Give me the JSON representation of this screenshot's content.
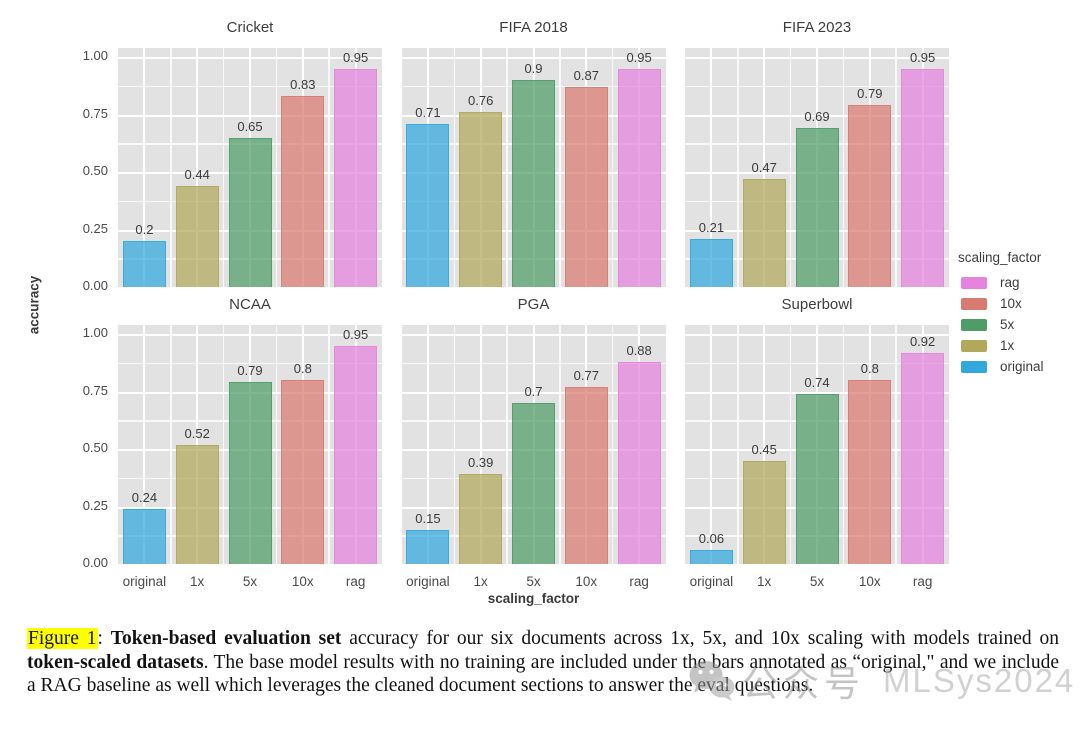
{
  "chart_data": {
    "type": "bar",
    "categories": [
      "original",
      "1x",
      "5x",
      "10x",
      "rag"
    ],
    "xlabel": "scaling_factor",
    "ylabel": "accuracy",
    "ylim": [
      0,
      1.0
    ],
    "ytick_labels": [
      "1.00",
      "0.75",
      "0.50",
      "0.25",
      "0.00"
    ],
    "ytick_values": [
      1.0,
      0.75,
      0.5,
      0.25,
      0.0
    ],
    "grid": true,
    "panel_bg": "#e2e2e2",
    "legend": {
      "title": "scaling_factor",
      "position": "right",
      "entries": [
        {
          "label": "rag",
          "color": "#e583de"
        },
        {
          "label": "10x",
          "color": "#d97a72"
        },
        {
          "label": "5x",
          "color": "#4f9c68"
        },
        {
          "label": "1x",
          "color": "#b1a85c"
        },
        {
          "label": "original",
          "color": "#31a8dc"
        }
      ]
    },
    "series_colors": {
      "original": "#31a8dc",
      "1x": "#b1a85c",
      "5x": "#4f9c68",
      "10x": "#d97a72",
      "rag": "#e583de"
    },
    "panels": [
      {
        "title": "Cricket",
        "values": [
          0.2,
          0.44,
          0.65,
          0.83,
          0.95
        ],
        "labels": [
          "0.2",
          "0.44",
          "0.65",
          "0.83",
          "0.95"
        ]
      },
      {
        "title": "FIFA 2018",
        "values": [
          0.71,
          0.76,
          0.9,
          0.87,
          0.95
        ],
        "labels": [
          "0.71",
          "0.76",
          "0.9",
          "0.87",
          "0.95"
        ]
      },
      {
        "title": "FIFA 2023",
        "values": [
          0.21,
          0.47,
          0.69,
          0.79,
          0.95
        ],
        "labels": [
          "0.21",
          "0.47",
          "0.69",
          "0.79",
          "0.95"
        ]
      },
      {
        "title": "NCAA",
        "values": [
          0.24,
          0.52,
          0.79,
          0.8,
          0.95
        ],
        "labels": [
          "0.24",
          "0.52",
          "0.79",
          "0.8",
          "0.95"
        ]
      },
      {
        "title": "PGA",
        "values": [
          0.15,
          0.39,
          0.7,
          0.77,
          0.88
        ],
        "labels": [
          "0.15",
          "0.39",
          "0.7",
          "0.77",
          "0.88"
        ]
      },
      {
        "title": "Superbowl",
        "values": [
          0.06,
          0.45,
          0.74,
          0.8,
          0.92
        ],
        "labels": [
          "0.06",
          "0.45",
          "0.74",
          "0.8",
          "0.92"
        ]
      }
    ]
  },
  "caption": {
    "label": "Figure 1",
    "sep": ": ",
    "bold1": "Token-based evaluation set",
    "text1": " accuracy for our six documents across 1x, 5x, and 10x scaling with models trained on ",
    "bold2": "token-scaled datasets",
    "text2": ". The base model results with no training are included under the bars annotated as “original,\" and we include a RAG baseline as well which leverages the cleaned document sections to answer the eval questions.",
    "highlight_color": "#ffff00"
  },
  "watermark": {
    "icon": "wechat-icon",
    "account_text": "公众号",
    "brand_text": "MLSys2024"
  }
}
